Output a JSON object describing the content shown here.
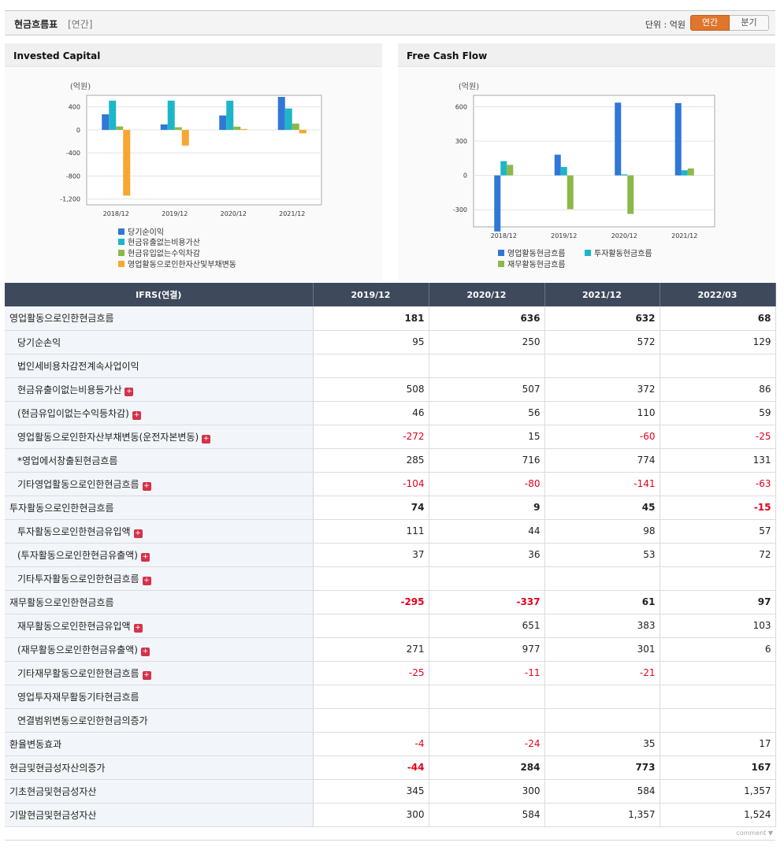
{
  "header": {
    "title": "현금흐름표",
    "subtitle": "[연간]",
    "unit": "단위 : 억원",
    "btn_annual": "연간",
    "btn_quarter": "분기"
  },
  "colors": {
    "blue": "#3077d6",
    "teal": "#1db6c8",
    "green": "#8cb84a",
    "orange": "#f5a731"
  },
  "chart_data": [
    {
      "type": "bar",
      "title": "Invested Capital",
      "ylabel": "(억원)",
      "categories": [
        "2018/12",
        "2019/12",
        "2020/12",
        "2021/12"
      ],
      "ylim": [
        -1300,
        600
      ],
      "yticks": [
        400,
        0,
        -400,
        -800,
        -1200
      ],
      "ytick_labels": [
        "400",
        "0",
        "-400",
        "-800",
        "-1,200"
      ],
      "series": [
        {
          "name": "당기순이익",
          "color": "#3077d6",
          "values": [
            270,
            95,
            250,
            572
          ]
        },
        {
          "name": "현금유출없는비용가산",
          "color": "#1db6c8",
          "values": [
            508,
            508,
            507,
            372
          ]
        },
        {
          "name": "현금유입없는수익차감",
          "color": "#8cb84a",
          "values": [
            60,
            46,
            56,
            110
          ]
        },
        {
          "name": "영업활동으로인한자산및부채변동",
          "color": "#f5a731",
          "values": [
            -1140,
            -272,
            15,
            -60
          ]
        }
      ]
    },
    {
      "type": "bar",
      "title": "Free Cash Flow",
      "ylabel": "(억원)",
      "categories": [
        "2018/12",
        "2019/12",
        "2020/12",
        "2021/12"
      ],
      "ylim": [
        -450,
        700
      ],
      "yticks": [
        600,
        300,
        0,
        -300
      ],
      "ytick_labels": [
        "600",
        "300",
        "0",
        "-300"
      ],
      "series": [
        {
          "name": "영업활동현금흐름",
          "color": "#3077d6",
          "values": [
            -490,
            181,
            636,
            632
          ]
        },
        {
          "name": "투자활동현금흐름",
          "color": "#1db6c8",
          "values": [
            125,
            74,
            9,
            45
          ]
        },
        {
          "name": "재무활동현금흐름",
          "color": "#8cb84a",
          "values": [
            92,
            -295,
            -337,
            61
          ]
        }
      ]
    }
  ],
  "table": {
    "header": [
      "IFRS(연결)",
      "2019/12",
      "2020/12",
      "2021/12",
      "2022/03"
    ],
    "rows": [
      {
        "label": "영업활동으로인한현금흐름",
        "values": [
          "181",
          "636",
          "632",
          "68"
        ],
        "major": true,
        "plus": false
      },
      {
        "label": "당기순손익",
        "values": [
          "95",
          "250",
          "572",
          "129"
        ],
        "major": false,
        "plus": false
      },
      {
        "label": "법인세비용차감전계속사업이익",
        "values": [
          "",
          "",
          "",
          ""
        ],
        "major": false,
        "plus": false
      },
      {
        "label": "현금유출이없는비용등가산",
        "values": [
          "508",
          "507",
          "372",
          "86"
        ],
        "major": false,
        "plus": true
      },
      {
        "label": "(현금유입이없는수익등차감)",
        "values": [
          "46",
          "56",
          "110",
          "59"
        ],
        "major": false,
        "plus": true
      },
      {
        "label": "영업활동으로인한자산부채변동(운전자본변동)",
        "values": [
          "-272",
          "15",
          "-60",
          "-25"
        ],
        "major": false,
        "plus": true
      },
      {
        "label": "*영업에서창출된현금흐름",
        "values": [
          "285",
          "716",
          "774",
          "131"
        ],
        "major": false,
        "plus": false
      },
      {
        "label": "기타영업활동으로인한현금흐름",
        "values": [
          "-104",
          "-80",
          "-141",
          "-63"
        ],
        "major": false,
        "plus": true
      },
      {
        "label": "투자활동으로인한현금흐름",
        "values": [
          "74",
          "9",
          "45",
          "-15"
        ],
        "major": true,
        "plus": false
      },
      {
        "label": "투자활동으로인한현금유입액",
        "values": [
          "111",
          "44",
          "98",
          "57"
        ],
        "major": false,
        "plus": true
      },
      {
        "label": "(투자활동으로인한현금유출액)",
        "values": [
          "37",
          "36",
          "53",
          "72"
        ],
        "major": false,
        "plus": true
      },
      {
        "label": "기타투자활동으로인한현금흐름",
        "values": [
          "",
          "",
          "",
          ""
        ],
        "major": false,
        "plus": true
      },
      {
        "label": "재무활동으로인한현금흐름",
        "values": [
          "-295",
          "-337",
          "61",
          "97"
        ],
        "major": true,
        "plus": false
      },
      {
        "label": "재무활동으로인한현금유입액",
        "values": [
          "",
          "651",
          "383",
          "103"
        ],
        "major": false,
        "plus": true
      },
      {
        "label": "(재무활동으로인한현금유출액)",
        "values": [
          "271",
          "977",
          "301",
          "6"
        ],
        "major": false,
        "plus": true
      },
      {
        "label": "기타재무활동으로인한현금흐름",
        "values": [
          "-25",
          "-11",
          "-21",
          ""
        ],
        "major": false,
        "plus": true
      },
      {
        "label": "영업투자재무활동기타현금흐름",
        "values": [
          "",
          "",
          "",
          ""
        ],
        "major": false,
        "plus": false
      },
      {
        "label": "연결범위변동으로인한현금의증가",
        "values": [
          "",
          "",
          "",
          ""
        ],
        "major": false,
        "plus": false
      },
      {
        "label": "환율변동효과",
        "values": [
          "-4",
          "-24",
          "35",
          "17"
        ],
        "major": false,
        "plus": false,
        "flat": true
      },
      {
        "label": "현금및현금성자산의증가",
        "values": [
          "-44",
          "284",
          "773",
          "167"
        ],
        "major": true,
        "plus": false
      },
      {
        "label": "기초현금및현금성자산",
        "values": [
          "345",
          "300",
          "584",
          "1,357"
        ],
        "major": false,
        "plus": false,
        "flat": true
      },
      {
        "label": "기말현금및현금성자산",
        "values": [
          "300",
          "584",
          "1,357",
          "1,524"
        ],
        "major": false,
        "plus": false,
        "flat": true
      }
    ]
  },
  "footer": {
    "comment": "comment ▼"
  }
}
